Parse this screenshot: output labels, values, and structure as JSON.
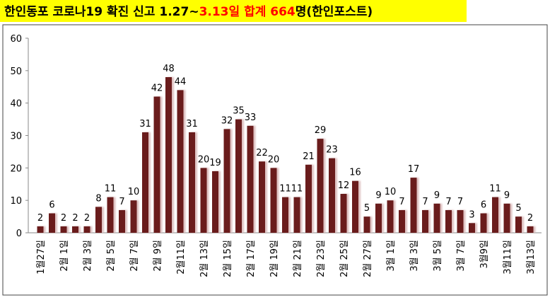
{
  "chart_data": {
    "type": "bar",
    "title": [
      "한인동포 코로나19 확진 신고 1.27~",
      "3.13일 합계 664",
      "명(한인포스트)"
    ],
    "title_colors": [
      "#000000",
      "#ff0000",
      "#000000"
    ],
    "title_background": "#ffff00",
    "categories": [
      "1월27일",
      null,
      "2월 1일",
      null,
      "2월 3일",
      null,
      "2월 5일",
      null,
      "2월 7일",
      null,
      "2월 9일",
      null,
      "2월11일",
      null,
      "2월 13일",
      null,
      "2월 15일",
      null,
      "2월 17일",
      null,
      "2월 19일",
      null,
      "2월 21일",
      null,
      "2월 23일",
      null,
      "2월 25일",
      null,
      "2월 27일",
      null,
      "3월 1일",
      null,
      "3월 3일",
      null,
      "3월 5일",
      null,
      "3월 7일",
      null,
      "3월9일",
      null,
      "3월11일",
      null,
      "3월13일"
    ],
    "values": [
      2,
      6,
      2,
      2,
      2,
      8,
      11,
      7,
      10,
      31,
      42,
      48,
      44,
      31,
      20,
      19,
      32,
      35,
      33,
      22,
      20,
      11,
      11,
      21,
      29,
      23,
      12,
      16,
      5,
      9,
      10,
      7,
      17,
      7,
      9,
      7,
      7,
      3,
      6,
      11,
      9,
      5,
      2
    ],
    "color": "#6b1c1c",
    "ylim": [
      0,
      60
    ],
    "yticks": [
      0,
      10,
      20,
      30,
      40,
      50,
      60
    ],
    "grid": false
  }
}
